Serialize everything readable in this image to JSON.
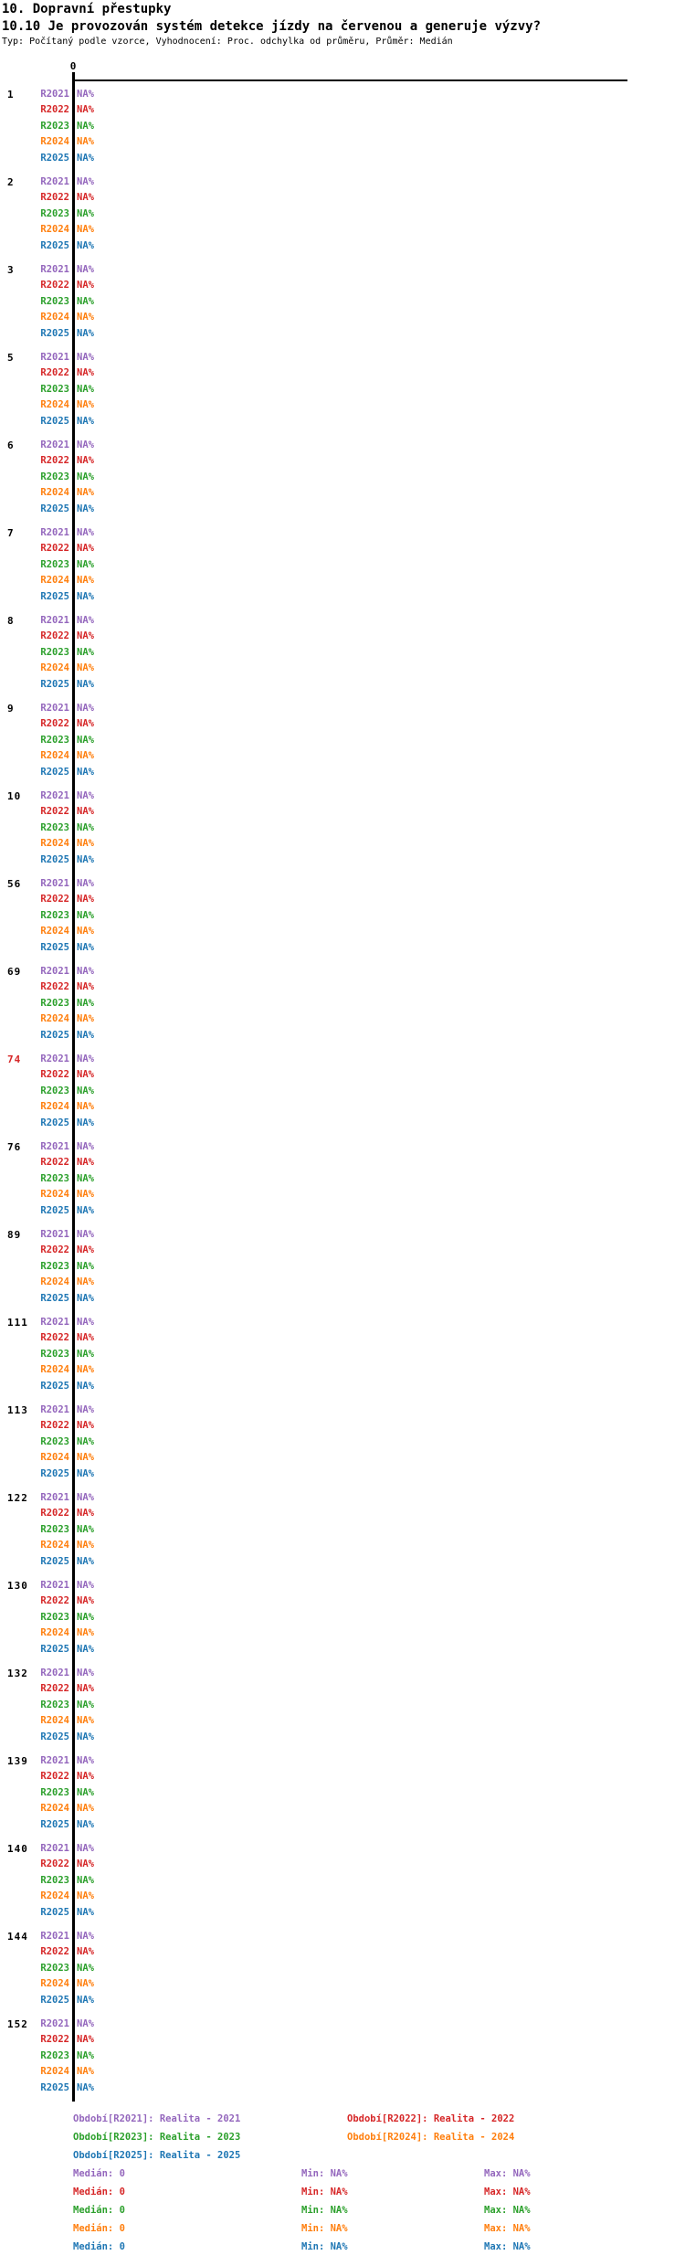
{
  "header": {
    "title1": "10. Dopravní přestupky",
    "title2": "10.10 Je provozován systém detekce jízdy na červenou a generuje výzvy?",
    "subtitle": "Typ: Počítaný podle vzorce, Vyhodnocení: Proc. odchylka od průměru, Průměr: Medián"
  },
  "axis": {
    "tick_label": "0"
  },
  "colors": {
    "R2021": "#9467bd",
    "R2022": "#d62728",
    "R2023": "#2ca02c",
    "R2024": "#ff7f0e",
    "R2025": "#1f77b4",
    "highlight": "#d62728",
    "default_label": "#000000",
    "axis": "#000000"
  },
  "years": [
    "R2021",
    "R2022",
    "R2023",
    "R2024",
    "R2025"
  ],
  "groups": [
    {
      "id": "1",
      "highlight": false,
      "values": [
        "NA%",
        "NA%",
        "NA%",
        "NA%",
        "NA%"
      ]
    },
    {
      "id": "2",
      "highlight": false,
      "values": [
        "NA%",
        "NA%",
        "NA%",
        "NA%",
        "NA%"
      ]
    },
    {
      "id": "3",
      "highlight": false,
      "values": [
        "NA%",
        "NA%",
        "NA%",
        "NA%",
        "NA%"
      ]
    },
    {
      "id": "5",
      "highlight": false,
      "values": [
        "NA%",
        "NA%",
        "NA%",
        "NA%",
        "NA%"
      ]
    },
    {
      "id": "6",
      "highlight": false,
      "values": [
        "NA%",
        "NA%",
        "NA%",
        "NA%",
        "NA%"
      ]
    },
    {
      "id": "7",
      "highlight": false,
      "values": [
        "NA%",
        "NA%",
        "NA%",
        "NA%",
        "NA%"
      ]
    },
    {
      "id": "8",
      "highlight": false,
      "values": [
        "NA%",
        "NA%",
        "NA%",
        "NA%",
        "NA%"
      ]
    },
    {
      "id": "9",
      "highlight": false,
      "values": [
        "NA%",
        "NA%",
        "NA%",
        "NA%",
        "NA%"
      ]
    },
    {
      "id": "10",
      "highlight": false,
      "values": [
        "NA%",
        "NA%",
        "NA%",
        "NA%",
        "NA%"
      ]
    },
    {
      "id": "56",
      "highlight": false,
      "values": [
        "NA%",
        "NA%",
        "NA%",
        "NA%",
        "NA%"
      ]
    },
    {
      "id": "69",
      "highlight": false,
      "values": [
        "NA%",
        "NA%",
        "NA%",
        "NA%",
        "NA%"
      ]
    },
    {
      "id": "74",
      "highlight": true,
      "values": [
        "NA%",
        "NA%",
        "NA%",
        "NA%",
        "NA%"
      ]
    },
    {
      "id": "76",
      "highlight": false,
      "values": [
        "NA%",
        "NA%",
        "NA%",
        "NA%",
        "NA%"
      ]
    },
    {
      "id": "89",
      "highlight": false,
      "values": [
        "NA%",
        "NA%",
        "NA%",
        "NA%",
        "NA%"
      ]
    },
    {
      "id": "111",
      "highlight": false,
      "values": [
        "NA%",
        "NA%",
        "NA%",
        "NA%",
        "NA%"
      ]
    },
    {
      "id": "113",
      "highlight": false,
      "values": [
        "NA%",
        "NA%",
        "NA%",
        "NA%",
        "NA%"
      ]
    },
    {
      "id": "122",
      "highlight": false,
      "values": [
        "NA%",
        "NA%",
        "NA%",
        "NA%",
        "NA%"
      ]
    },
    {
      "id": "130",
      "highlight": false,
      "values": [
        "NA%",
        "NA%",
        "NA%",
        "NA%",
        "NA%"
      ]
    },
    {
      "id": "132",
      "highlight": false,
      "values": [
        "NA%",
        "NA%",
        "NA%",
        "NA%",
        "NA%"
      ]
    },
    {
      "id": "139",
      "highlight": false,
      "values": [
        "NA%",
        "NA%",
        "NA%",
        "NA%",
        "NA%"
      ]
    },
    {
      "id": "140",
      "highlight": false,
      "values": [
        "NA%",
        "NA%",
        "NA%",
        "NA%",
        "NA%"
      ]
    },
    {
      "id": "144",
      "highlight": false,
      "values": [
        "NA%",
        "NA%",
        "NA%",
        "NA%",
        "NA%"
      ]
    },
    {
      "id": "152",
      "highlight": false,
      "values": [
        "NA%",
        "NA%",
        "NA%",
        "NA%",
        "NA%"
      ]
    }
  ],
  "legend": {
    "periods": [
      {
        "year": "R2021",
        "label": "Období[R2021]: Realita - 2021"
      },
      {
        "year": "R2022",
        "label": "Období[R2022]: Realita - 2022"
      },
      {
        "year": "R2023",
        "label": "Období[R2023]: Realita - 2023"
      },
      {
        "year": "R2024",
        "label": "Období[R2024]: Realita - 2024"
      },
      {
        "year": "R2025",
        "label": "Období[R2025]: Realita - 2025"
      }
    ],
    "stats": [
      {
        "year": "R2021",
        "median_label": "Medián: 0",
        "min_label": "Min: NA%",
        "max_label": "Max: NA%"
      },
      {
        "year": "R2022",
        "median_label": "Medián: 0",
        "min_label": "Min: NA%",
        "max_label": "Max: NA%"
      },
      {
        "year": "R2023",
        "median_label": "Medián: 0",
        "min_label": "Min: NA%",
        "max_label": "Max: NA%"
      },
      {
        "year": "R2024",
        "median_label": "Medián: 0",
        "min_label": "Min: NA%",
        "max_label": "Max: NA%"
      },
      {
        "year": "R2025",
        "median_label": "Medián: 0",
        "min_label": "Min: NA%",
        "max_label": "Max: NA%"
      }
    ]
  },
  "chart_data": {
    "type": "bar",
    "orientation": "horizontal",
    "title": "10.10 Je provozován systém detekce jízdy na červenou a generuje výzvy?",
    "parent_section": "10. Dopravní přestupky",
    "subtitle": "Typ: Počítaný podle vzorce, Vyhodnocení: Proc. odchylka od průměru, Průměr: Medián",
    "categories": [
      "1",
      "2",
      "3",
      "5",
      "6",
      "7",
      "8",
      "9",
      "10",
      "56",
      "69",
      "74",
      "76",
      "89",
      "111",
      "113",
      "122",
      "130",
      "132",
      "139",
      "140",
      "144",
      "152"
    ],
    "highlighted_categories": [
      "74"
    ],
    "x_axis": {
      "position": "top",
      "tick_labels": [
        "0"
      ],
      "grid": false
    },
    "legend_position": "bottom",
    "series": [
      {
        "name": "R2021",
        "period": "Realita - 2021",
        "color": "#9467bd",
        "median": "0",
        "min": "NA%",
        "max": "NA%",
        "values": [
          "NA%",
          "NA%",
          "NA%",
          "NA%",
          "NA%",
          "NA%",
          "NA%",
          "NA%",
          "NA%",
          "NA%",
          "NA%",
          "NA%",
          "NA%",
          "NA%",
          "NA%",
          "NA%",
          "NA%",
          "NA%",
          "NA%",
          "NA%",
          "NA%",
          "NA%",
          "NA%"
        ]
      },
      {
        "name": "R2022",
        "period": "Realita - 2022",
        "color": "#d62728",
        "median": "0",
        "min": "NA%",
        "max": "NA%",
        "values": [
          "NA%",
          "NA%",
          "NA%",
          "NA%",
          "NA%",
          "NA%",
          "NA%",
          "NA%",
          "NA%",
          "NA%",
          "NA%",
          "NA%",
          "NA%",
          "NA%",
          "NA%",
          "NA%",
          "NA%",
          "NA%",
          "NA%",
          "NA%",
          "NA%",
          "NA%",
          "NA%"
        ]
      },
      {
        "name": "R2023",
        "period": "Realita - 2023",
        "color": "#2ca02c",
        "median": "0",
        "min": "NA%",
        "max": "NA%",
        "values": [
          "NA%",
          "NA%",
          "NA%",
          "NA%",
          "NA%",
          "NA%",
          "NA%",
          "NA%",
          "NA%",
          "NA%",
          "NA%",
          "NA%",
          "NA%",
          "NA%",
          "NA%",
          "NA%",
          "NA%",
          "NA%",
          "NA%",
          "NA%",
          "NA%",
          "NA%",
          "NA%"
        ]
      },
      {
        "name": "R2024",
        "period": "Realita - 2024",
        "color": "#ff7f0e",
        "median": "0",
        "min": "NA%",
        "max": "NA%",
        "values": [
          "NA%",
          "NA%",
          "NA%",
          "NA%",
          "NA%",
          "NA%",
          "NA%",
          "NA%",
          "NA%",
          "NA%",
          "NA%",
          "NA%",
          "NA%",
          "NA%",
          "NA%",
          "NA%",
          "NA%",
          "NA%",
          "NA%",
          "NA%",
          "NA%",
          "NA%",
          "NA%"
        ]
      },
      {
        "name": "R2025",
        "period": "Realita - 2025",
        "color": "#1f77b4",
        "median": "0",
        "min": "NA%",
        "max": "NA%",
        "values": [
          "NA%",
          "NA%",
          "NA%",
          "NA%",
          "NA%",
          "NA%",
          "NA%",
          "NA%",
          "NA%",
          "NA%",
          "NA%",
          "NA%",
          "NA%",
          "NA%",
          "NA%",
          "NA%",
          "NA%",
          "NA%",
          "NA%",
          "NA%",
          "NA%",
          "NA%",
          "NA%"
        ]
      }
    ]
  },
  "layout_note_colors": {
    "background": "#ffffff"
  }
}
